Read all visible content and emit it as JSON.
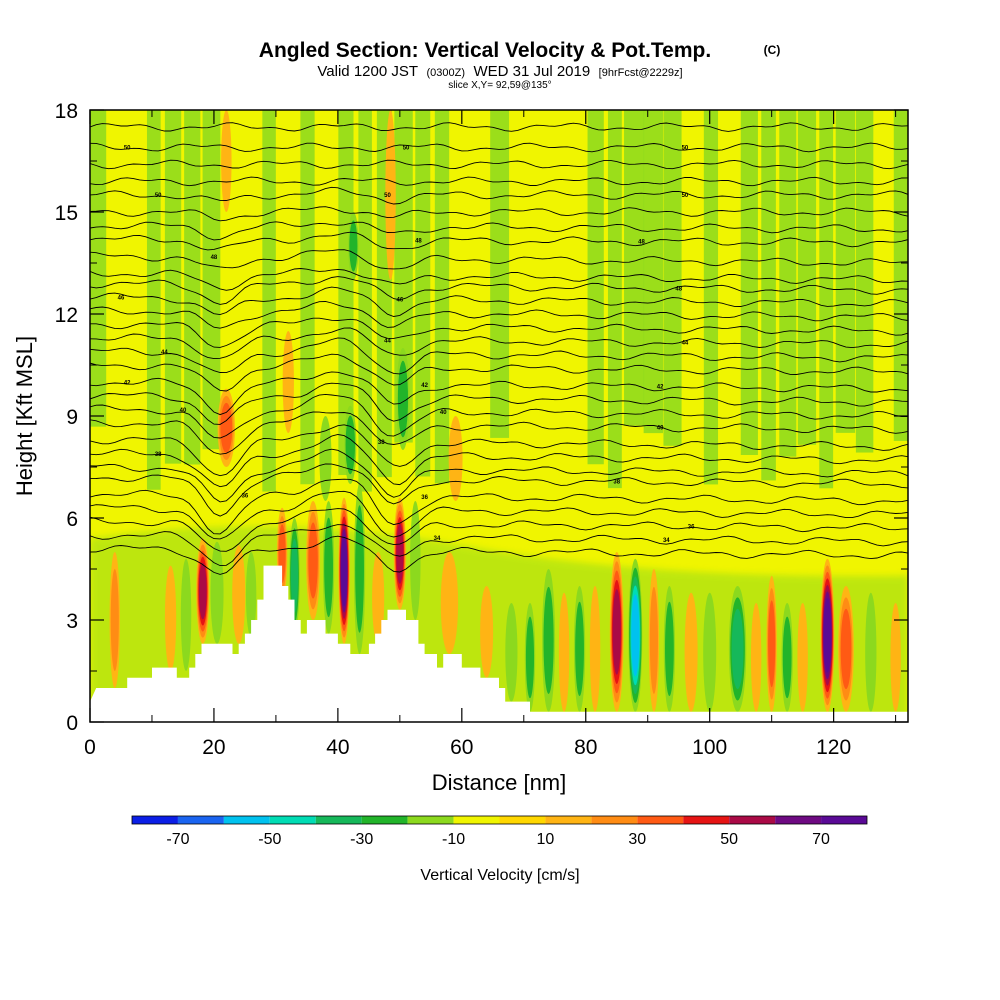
{
  "header": {
    "title": "Angled Section: Vertical Velocity & Pot.Temp.",
    "title_tag": "(C)",
    "valid_prefix": "Valid 1200 JST",
    "valid_utc": "(0300Z)",
    "valid_date": "WED 31 Jul 2019",
    "forecast": "[9hrFcst@2229z]",
    "slice": "slice X,Y= 92,59@135°"
  },
  "chart_data": {
    "type": "heatmap",
    "xlabel": "Distance [nm]",
    "ylabel": "Height [Kft MSL]",
    "xlim": [
      0,
      132
    ],
    "ylim": [
      0,
      18
    ],
    "x_ticks": [
      {
        "value": 0,
        "label": "0"
      },
      {
        "value": 20,
        "label": "20"
      },
      {
        "value": 40,
        "label": "40"
      },
      {
        "value": 60,
        "label": "60"
      },
      {
        "value": 80,
        "label": "80"
      },
      {
        "value": 100,
        "label": "100"
      },
      {
        "value": 120,
        "label": "120"
      }
    ],
    "y_ticks": [
      {
        "value": 0,
        "label": "0"
      },
      {
        "value": 3,
        "label": "3"
      },
      {
        "value": 6,
        "label": "6"
      },
      {
        "value": 9,
        "label": "9"
      },
      {
        "value": 12,
        "label": "12"
      },
      {
        "value": 15,
        "label": "15"
      },
      {
        "value": 18,
        "label": "18"
      }
    ],
    "colorbar": {
      "title": "Vertical Velocity [cm/s]",
      "levels": [
        -80,
        -70,
        -60,
        -50,
        -40,
        -30,
        -20,
        -10,
        0,
        10,
        20,
        30,
        40,
        50,
        60,
        70,
        80
      ],
      "colors": [
        "#0b1ee6",
        "#1a64f0",
        "#00c2ef",
        "#00dcb4",
        "#16b85a",
        "#22b42a",
        "#8cd91e",
        "#f0f500",
        "#ffd700",
        "#ffb414",
        "#ff8c14",
        "#ff5a14",
        "#e61414",
        "#aa0a46",
        "#6e0a82",
        "#5a0a96"
      ],
      "ticks": [
        {
          "value": -70,
          "label": "-70"
        },
        {
          "value": -50,
          "label": "-50"
        },
        {
          "value": -30,
          "label": "-30"
        },
        {
          "value": -10,
          "label": "-10"
        },
        {
          "value": 10,
          "label": "10"
        },
        {
          "value": 30,
          "label": "30"
        },
        {
          "value": 50,
          "label": "50"
        },
        {
          "value": 70,
          "label": "70"
        }
      ]
    },
    "terrain": [
      [
        0,
        0.6
      ],
      [
        1,
        1.0
      ],
      [
        6,
        1.0
      ],
      [
        6,
        1.3
      ],
      [
        10,
        1.3
      ],
      [
        10,
        1.6
      ],
      [
        14,
        1.6
      ],
      [
        14,
        1.3
      ],
      [
        16,
        1.3
      ],
      [
        16,
        1.6
      ],
      [
        17,
        1.6
      ],
      [
        17,
        2.0
      ],
      [
        18,
        2.0
      ],
      [
        18,
        2.3
      ],
      [
        23,
        2.3
      ],
      [
        23,
        2.0
      ],
      [
        24,
        2.0
      ],
      [
        24,
        2.3
      ],
      [
        25,
        2.3
      ],
      [
        25,
        2.6
      ],
      [
        26,
        2.6
      ],
      [
        26,
        3.0
      ],
      [
        27,
        3.0
      ],
      [
        27,
        3.6
      ],
      [
        28,
        3.6
      ],
      [
        28,
        4.6
      ],
      [
        31,
        4.6
      ],
      [
        31,
        4.0
      ],
      [
        32,
        4.0
      ],
      [
        32,
        3.6
      ],
      [
        33,
        3.6
      ],
      [
        33,
        3.0
      ],
      [
        34,
        3.0
      ],
      [
        34,
        2.6
      ],
      [
        35,
        2.6
      ],
      [
        35,
        3.0
      ],
      [
        38,
        3.0
      ],
      [
        38,
        2.6
      ],
      [
        40,
        2.6
      ],
      [
        40,
        2.3
      ],
      [
        42,
        2.3
      ],
      [
        42,
        2.0
      ],
      [
        45,
        2.0
      ],
      [
        45,
        2.3
      ],
      [
        46,
        2.3
      ],
      [
        46,
        2.6
      ],
      [
        47,
        2.6
      ],
      [
        47,
        3.0
      ],
      [
        48,
        3.0
      ],
      [
        48,
        3.3
      ],
      [
        51,
        3.3
      ],
      [
        51,
        3.0
      ],
      [
        53,
        3.0
      ],
      [
        53,
        2.3
      ],
      [
        54,
        2.3
      ],
      [
        54,
        2.0
      ],
      [
        56,
        2.0
      ],
      [
        56,
        1.6
      ],
      [
        57,
        1.6
      ],
      [
        57,
        2.0
      ],
      [
        60,
        2.0
      ],
      [
        60,
        1.6
      ],
      [
        63,
        1.6
      ],
      [
        63,
        1.3
      ],
      [
        66,
        1.3
      ],
      [
        66,
        1.0
      ],
      [
        67,
        1.0
      ],
      [
        67,
        0.6
      ],
      [
        71,
        0.6
      ],
      [
        71,
        0.3
      ],
      [
        132,
        0.3
      ]
    ],
    "wv_bands": [
      {
        "x": 4,
        "w": 1.2,
        "y0": 1,
        "y1": 5,
        "v": 20
      },
      {
        "x": 13,
        "w": 1.3,
        "y0": 1.5,
        "y1": 4.6,
        "v": 10
      },
      {
        "x": 15.5,
        "w": 1.2,
        "y0": 1.5,
        "y1": 4.8,
        "v": -12
      },
      {
        "x": 18.2,
        "w": 1.5,
        "y0": 2.3,
        "y1": 5.4,
        "v": 55
      },
      {
        "x": 20.5,
        "w": 1.5,
        "y0": 2.3,
        "y1": 5.3,
        "v": -15
      },
      {
        "x": 24,
        "w": 1.5,
        "y0": 2.3,
        "y1": 5.2,
        "v": 15
      },
      {
        "x": 26,
        "w": 1.2,
        "y0": 2.5,
        "y1": 5.0,
        "v": -12
      },
      {
        "x": 31,
        "w": 1.2,
        "y0": 3.6,
        "y1": 6.3,
        "v": 30
      },
      {
        "x": 33,
        "w": 1.2,
        "y0": 2.6,
        "y1": 6.0,
        "v": -38
      },
      {
        "x": 36,
        "w": 1.6,
        "y0": 3.0,
        "y1": 6.5,
        "v": 38
      },
      {
        "x": 38.5,
        "w": 1.3,
        "y0": 2.6,
        "y1": 6.5,
        "v": -28
      },
      {
        "x": 41,
        "w": 1.3,
        "y0": 2.3,
        "y1": 6.6,
        "v": 75
      },
      {
        "x": 43.5,
        "w": 1.3,
        "y0": 2.0,
        "y1": 7.0,
        "v": -22
      },
      {
        "x": 46.5,
        "w": 1.4,
        "y0": 2.3,
        "y1": 5.0,
        "v": 12
      },
      {
        "x": 50,
        "w": 1.4,
        "y0": 3.3,
        "y1": 6.6,
        "v": 55
      },
      {
        "x": 52.5,
        "w": 1.2,
        "y0": 3.0,
        "y1": 6.5,
        "v": -18
      },
      {
        "x": 58,
        "w": 2.0,
        "y0": 2.0,
        "y1": 5.0,
        "v": 15
      },
      {
        "x": 64,
        "w": 1.5,
        "y0": 1.3,
        "y1": 4.0,
        "v": 10
      },
      {
        "x": 68,
        "w": 1.4,
        "y0": 0.6,
        "y1": 3.5,
        "v": -15
      },
      {
        "x": 71,
        "w": 1.2,
        "y0": 0.3,
        "y1": 3.5,
        "v": -28
      },
      {
        "x": 74,
        "w": 1.5,
        "y0": 0.3,
        "y1": 4.5,
        "v": -25
      },
      {
        "x": 76.5,
        "w": 1.2,
        "y0": 0.3,
        "y1": 3.8,
        "v": 15
      },
      {
        "x": 79,
        "w": 1.3,
        "y0": 0.3,
        "y1": 4.0,
        "v": -28
      },
      {
        "x": 81.5,
        "w": 1.2,
        "y0": 0.3,
        "y1": 4.0,
        "v": 12
      },
      {
        "x": 85,
        "w": 1.6,
        "y0": 0.3,
        "y1": 5.0,
        "v": 55
      },
      {
        "x": 88,
        "w": 1.6,
        "y0": 0.3,
        "y1": 4.8,
        "v": -55
      },
      {
        "x": 91,
        "w": 1.2,
        "y0": 0.3,
        "y1": 4.5,
        "v": 28
      },
      {
        "x": 93.5,
        "w": 1.3,
        "y0": 0.3,
        "y1": 4.0,
        "v": -28
      },
      {
        "x": 97,
        "w": 1.5,
        "y0": 0.3,
        "y1": 3.8,
        "v": 15
      },
      {
        "x": 100,
        "w": 1.5,
        "y0": 0.3,
        "y1": 3.8,
        "v": -15
      },
      {
        "x": 104.5,
        "w": 2.0,
        "y0": 0.3,
        "y1": 4.0,
        "v": -35
      },
      {
        "x": 107.5,
        "w": 1.2,
        "y0": 0.3,
        "y1": 3.5,
        "v": 12
      },
      {
        "x": 110,
        "w": 1.2,
        "y0": 0.3,
        "y1": 4.3,
        "v": 38
      },
      {
        "x": 112.5,
        "w": 1.3,
        "y0": 0.3,
        "y1": 3.5,
        "v": -28
      },
      {
        "x": 115,
        "w": 1.2,
        "y0": 0.3,
        "y1": 3.5,
        "v": 18
      },
      {
        "x": 119,
        "w": 1.6,
        "y0": 0.3,
        "y1": 4.8,
        "v": 75
      },
      {
        "x": 122,
        "w": 1.8,
        "y0": 0.3,
        "y1": 4.0,
        "v": 38
      },
      {
        "x": 126,
        "w": 1.3,
        "y0": 0.3,
        "y1": 3.8,
        "v": -15
      },
      {
        "x": 130,
        "w": 1.2,
        "y0": 0.3,
        "y1": 3.5,
        "v": 10
      },
      {
        "x": 22,
        "w": 2.0,
        "y0": 7.5,
        "y1": 9.8,
        "v": 30
      },
      {
        "x": 22,
        "w": 1.2,
        "y0": 15,
        "y1": 18,
        "v": 18
      },
      {
        "x": 32,
        "w": 1.3,
        "y0": 8.5,
        "y1": 11.5,
        "v": 18
      },
      {
        "x": 38,
        "w": 1.4,
        "y0": 6.5,
        "y1": 9.0,
        "v": -18
      },
      {
        "x": 42,
        "w": 1.4,
        "y0": 7.0,
        "y1": 9.3,
        "v": -28
      },
      {
        "x": 48.5,
        "w": 1.2,
        "y0": 13,
        "y1": 18,
        "v": 15
      },
      {
        "x": 50.5,
        "w": 1.5,
        "y0": 8,
        "y1": 11,
        "v": -28
      },
      {
        "x": 42.5,
        "w": 1.2,
        "y0": 13,
        "y1": 15,
        "v": -22
      },
      {
        "x": 59,
        "w": 1.6,
        "y0": 6.5,
        "y1": 9,
        "v": 12
      }
    ],
    "theta_lines": [
      {
        "label": "",
        "y": 17.5,
        "tilt": 0,
        "dip": 0
      },
      {
        "label": "50",
        "y": 16.9,
        "tilt": 0,
        "dip": 0,
        "label_x": [
          6,
          51,
          96
        ]
      },
      {
        "label": "",
        "y": 16.4,
        "tilt": 0,
        "dip": 0
      },
      {
        "label": "",
        "y": 15.9,
        "tilt": 0,
        "dip": 0
      },
      {
        "label": "50",
        "y": 15.5,
        "tilt": 0,
        "dip": 0.2,
        "label_x": [
          11,
          48,
          96
        ]
      },
      {
        "label": "",
        "y": 15.0,
        "tilt": 0,
        "dip": 0.2
      },
      {
        "label": "",
        "y": 14.6,
        "tilt": 0.1,
        "dip": 0.3
      },
      {
        "label": "48",
        "y": 14.2,
        "tilt": 0.1,
        "dip": 0.3,
        "label_x": [
          53,
          89
        ]
      },
      {
        "label": "48",
        "y": 13.7,
        "tilt": 0.2,
        "dip": 0.4,
        "label_x": [
          20
        ]
      },
      {
        "label": "",
        "y": 13.2,
        "tilt": 0.2,
        "dip": 0.4
      },
      {
        "label": "48",
        "y": 12.9,
        "tilt": 0.2,
        "dip": 0.5,
        "label_x": [
          95
        ]
      },
      {
        "label": "46",
        "y": 12.5,
        "tilt": 0.2,
        "dip": 0.5,
        "label_x": [
          5,
          50
        ]
      },
      {
        "label": "",
        "y": 12.1,
        "tilt": 0.2,
        "dip": 0.5
      },
      {
        "label": "",
        "y": 11.7,
        "tilt": 0.2,
        "dip": 0.6
      },
      {
        "label": "44",
        "y": 11.3,
        "tilt": 0.2,
        "dip": 0.6,
        "label_x": [
          48,
          96
        ]
      },
      {
        "label": "44",
        "y": 10.9,
        "tilt": 0.2,
        "dip": 0.7,
        "label_x": [
          12
        ]
      },
      {
        "label": "",
        "y": 10.5,
        "tilt": 0.2,
        "dip": 0.7
      },
      {
        "label": "42",
        "y": 10.0,
        "tilt": 0.2,
        "dip": 0.8,
        "label_x": [
          6,
          54,
          92
        ]
      },
      {
        "label": "",
        "y": 9.6,
        "tilt": 0.2,
        "dip": 0.8
      },
      {
        "label": "40",
        "y": 9.2,
        "tilt": 0.2,
        "dip": 0.9,
        "label_x": [
          15,
          57
        ]
      },
      {
        "label": "40",
        "y": 8.8,
        "tilt": 0.2,
        "dip": 0.9,
        "label_x": [
          92
        ]
      },
      {
        "label": "38",
        "y": 8.3,
        "tilt": 0.2,
        "dip": 1.0,
        "label_x": [
          47
        ]
      },
      {
        "label": "38",
        "y": 7.9,
        "tilt": 0.2,
        "dip": 1.0,
        "label_x": [
          11
        ]
      },
      {
        "label": "",
        "y": 7.5,
        "tilt": 0.2,
        "dip": 1.0
      },
      {
        "label": "38",
        "y": 7.2,
        "tilt": 0.2,
        "dip": 1.0,
        "label_x": [
          85
        ]
      },
      {
        "label": "36",
        "y": 6.7,
        "tilt": 0.2,
        "dip": 1.1,
        "label_x": [
          25,
          54
        ]
      },
      {
        "label": "",
        "y": 6.3,
        "tilt": 0.2,
        "dip": 1.0
      },
      {
        "label": "36",
        "y": 5.9,
        "tilt": 0.2,
        "dip": 0.9,
        "label_x": [
          97
        ]
      },
      {
        "label": "34",
        "y": 5.5,
        "tilt": 0.2,
        "dip": 0.8,
        "label_x": [
          56,
          93
        ]
      },
      {
        "label": "",
        "y": 5.1,
        "tilt": 0.2,
        "dip": 0.7
      }
    ]
  }
}
